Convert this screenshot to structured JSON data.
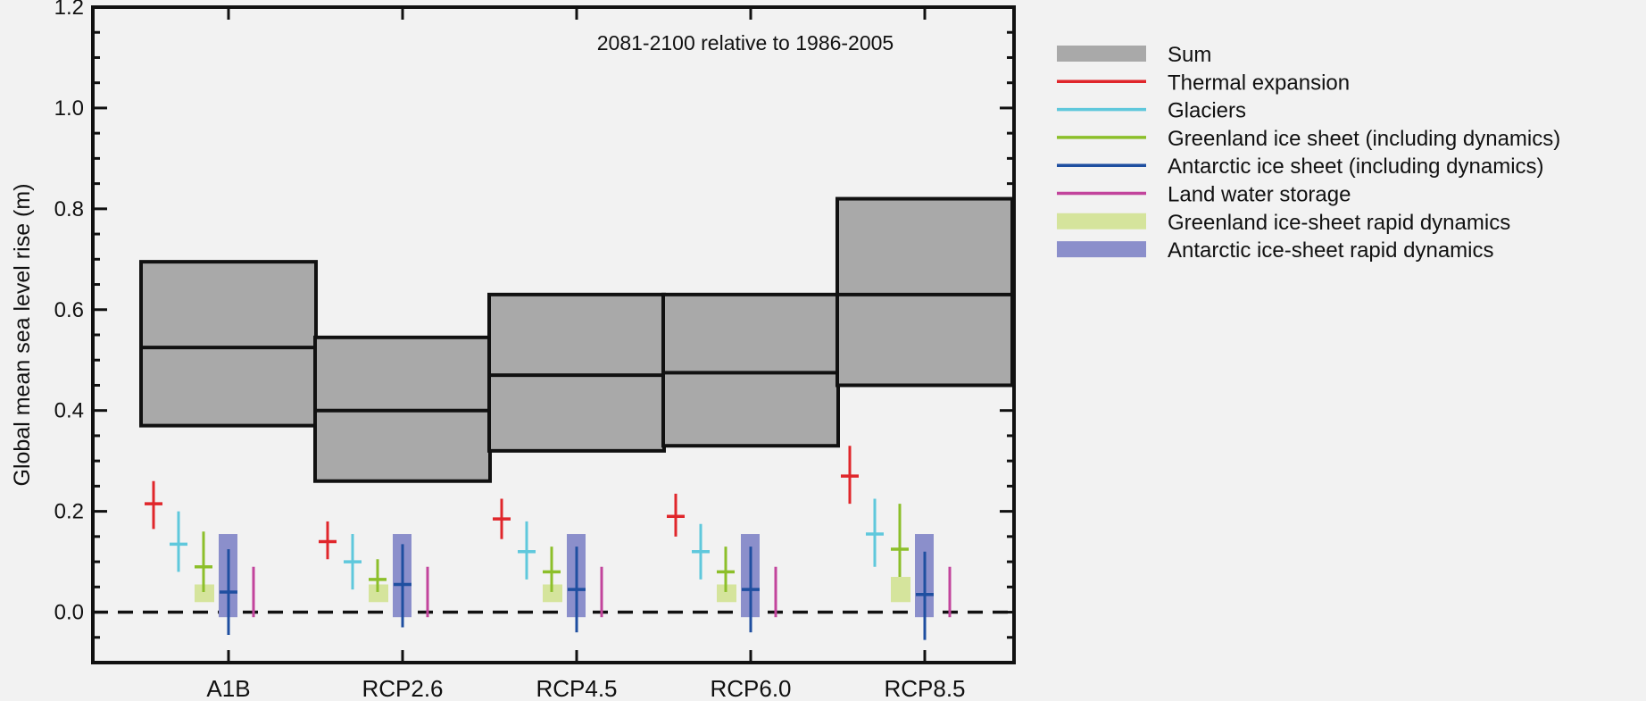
{
  "chart_data": {
    "type": "box",
    "title": "",
    "annotation": "2081-2100 relative to 1986-2005",
    "ylabel": "Global mean sea level rise (m)",
    "xlabel": "",
    "ylim": [
      -0.1,
      1.2
    ],
    "yticks": [
      0.0,
      0.2,
      0.4,
      0.6,
      0.8,
      1.0,
      1.2
    ],
    "ytick_labels": [
      "0.0",
      "0.2",
      "0.4",
      "0.6",
      "0.8",
      "1.0",
      "1.2"
    ],
    "zero_line": "dashed",
    "legend_position": "right",
    "categories": [
      "A1B",
      "RCP2.6",
      "RCP4.5",
      "RCP6.0",
      "RCP8.5"
    ],
    "series": [
      {
        "name": "Sum",
        "key": "sum",
        "kind": "box",
        "color": "#a9a9a9",
        "values": [
          {
            "low": 0.37,
            "median": 0.525,
            "high": 0.695
          },
          {
            "low": 0.26,
            "median": 0.4,
            "high": 0.545
          },
          {
            "low": 0.32,
            "median": 0.47,
            "high": 0.63
          },
          {
            "low": 0.33,
            "median": 0.475,
            "high": 0.63
          },
          {
            "low": 0.45,
            "median": 0.63,
            "high": 0.82
          }
        ]
      },
      {
        "name": "Thermal expansion",
        "key": "thermal",
        "kind": "cross",
        "color": "#e0262b",
        "values": [
          {
            "low": 0.165,
            "median": 0.215,
            "high": 0.26
          },
          {
            "low": 0.105,
            "median": 0.14,
            "high": 0.18
          },
          {
            "low": 0.145,
            "median": 0.185,
            "high": 0.225
          },
          {
            "low": 0.15,
            "median": 0.19,
            "high": 0.235
          },
          {
            "low": 0.215,
            "median": 0.27,
            "high": 0.33
          }
        ]
      },
      {
        "name": "Glaciers",
        "key": "glaciers",
        "kind": "cross",
        "color": "#5fc8dc",
        "values": [
          {
            "low": 0.08,
            "median": 0.135,
            "high": 0.2
          },
          {
            "low": 0.045,
            "median": 0.1,
            "high": 0.155
          },
          {
            "low": 0.065,
            "median": 0.12,
            "high": 0.18
          },
          {
            "low": 0.065,
            "median": 0.12,
            "high": 0.175
          },
          {
            "low": 0.09,
            "median": 0.155,
            "high": 0.225
          }
        ]
      },
      {
        "name": "Greenland ice sheet (including dynamics)",
        "key": "greenland",
        "kind": "cross",
        "color": "#8cbf2a",
        "values": [
          {
            "low": 0.04,
            "median": 0.09,
            "high": 0.16
          },
          {
            "low": 0.04,
            "median": 0.065,
            "high": 0.105
          },
          {
            "low": 0.04,
            "median": 0.08,
            "high": 0.13
          },
          {
            "low": 0.04,
            "median": 0.08,
            "high": 0.13
          },
          {
            "low": 0.07,
            "median": 0.125,
            "high": 0.215
          }
        ]
      },
      {
        "name": "Antarctic ice sheet (including dynamics)",
        "key": "antarctic",
        "kind": "cross",
        "color": "#1f4fa0",
        "values": [
          {
            "low": -0.045,
            "median": 0.04,
            "high": 0.125
          },
          {
            "low": -0.03,
            "median": 0.055,
            "high": 0.135
          },
          {
            "low": -0.04,
            "median": 0.045,
            "high": 0.13
          },
          {
            "low": -0.04,
            "median": 0.045,
            "high": 0.13
          },
          {
            "low": -0.055,
            "median": 0.035,
            "high": 0.12
          }
        ]
      },
      {
        "name": "Land water storage",
        "key": "landwater",
        "kind": "bar",
        "color": "#c2449c",
        "values": [
          {
            "low": -0.01,
            "high": 0.09
          },
          {
            "low": -0.01,
            "high": 0.09
          },
          {
            "low": -0.01,
            "high": 0.09
          },
          {
            "low": -0.01,
            "high": 0.09
          },
          {
            "low": -0.01,
            "high": 0.09
          }
        ]
      },
      {
        "name": "Greenland ice-sheet rapid dynamics",
        "key": "greenland_rapid",
        "kind": "range",
        "color": "#d5e49c",
        "values": [
          {
            "low": 0.02,
            "high": 0.055
          },
          {
            "low": 0.02,
            "high": 0.055
          },
          {
            "low": 0.02,
            "high": 0.055
          },
          {
            "low": 0.02,
            "high": 0.055
          },
          {
            "low": 0.02,
            "high": 0.07
          }
        ]
      },
      {
        "name": "Antarctic ice-sheet rapid dynamics",
        "key": "antarctic_rapid",
        "kind": "range",
        "color": "#8b8fcb",
        "values": [
          {
            "low": -0.01,
            "high": 0.155
          },
          {
            "low": -0.01,
            "high": 0.155
          },
          {
            "low": -0.01,
            "high": 0.155
          },
          {
            "low": -0.01,
            "high": 0.155
          },
          {
            "low": -0.01,
            "high": 0.155
          }
        ]
      }
    ]
  }
}
